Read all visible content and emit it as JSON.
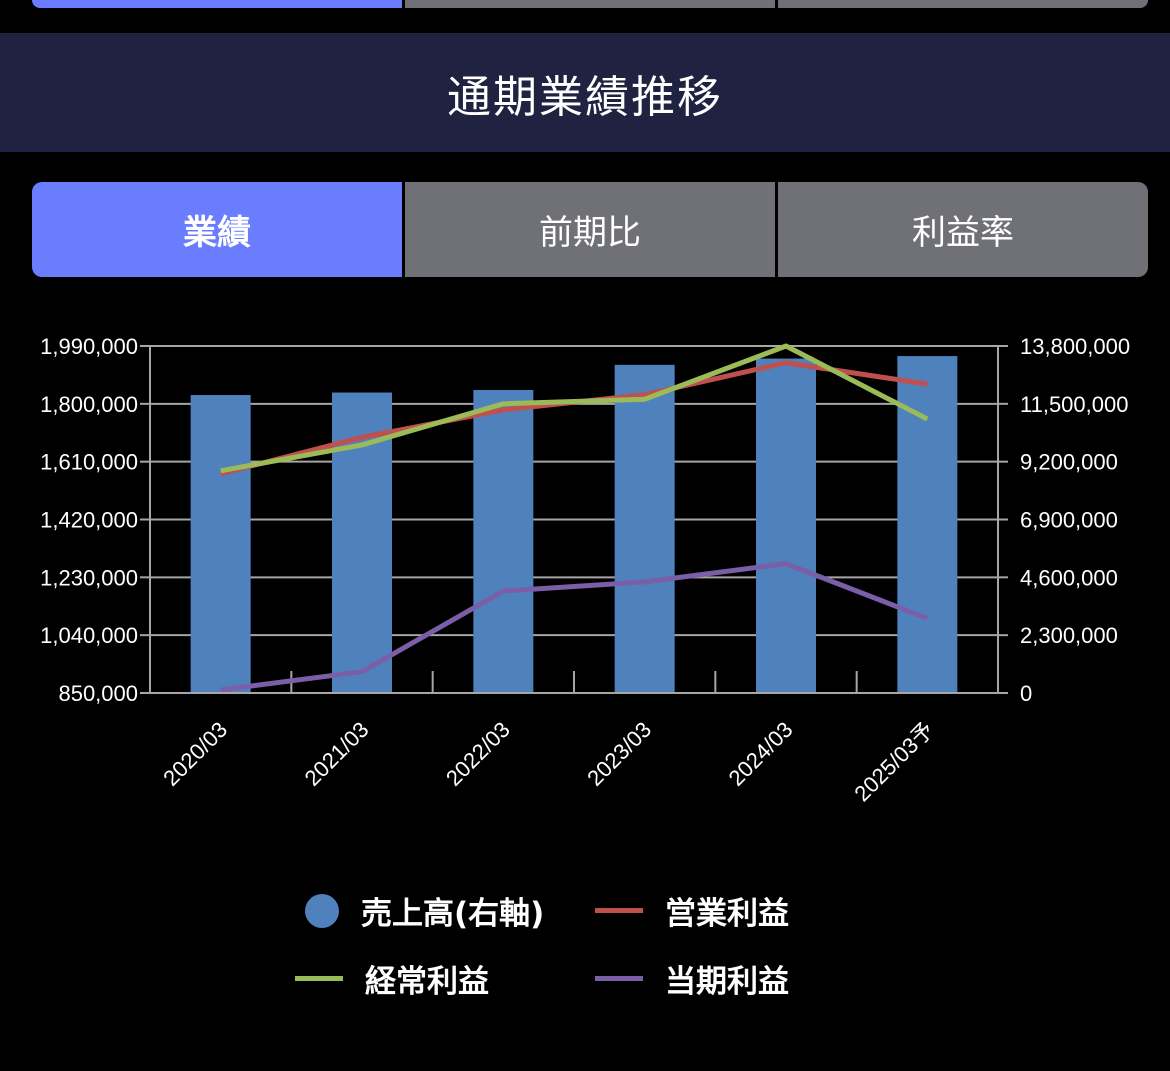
{
  "header": {
    "title": "通期業績推移"
  },
  "tabs": [
    {
      "label": "業績",
      "active": true
    },
    {
      "label": "前期比",
      "active": false
    },
    {
      "label": "利益率",
      "active": false
    }
  ],
  "colors": {
    "header_bg": "#1f2240",
    "tab_active": "#6a7dfe",
    "tab_inactive": "#707077",
    "sales": "#4f81bd",
    "operating": "#c0504d",
    "ordinary": "#9bbb59",
    "net": "#7a5fa8"
  },
  "legend": {
    "sales": "売上高(右軸)",
    "operating": "営業利益",
    "ordinary": "経常利益",
    "net": "当期利益"
  },
  "chart_data": {
    "type": "bar",
    "categories": [
      "2020/03",
      "2021/03",
      "2022/03",
      "2023/03",
      "2024/03",
      "2025/03予"
    ],
    "left_axis": {
      "ticks": [
        "1,990,000",
        "1,800,000",
        "1,610,000",
        "1,420,000",
        "1,230,000",
        "1,040,000",
        "850,000"
      ],
      "ylim": [
        850000,
        1990000
      ]
    },
    "right_axis": {
      "ticks": [
        "13,800,000",
        "11,500,000",
        "9,200,000",
        "6,900,000",
        "4,600,000",
        "2,300,000",
        "0"
      ],
      "ylim": [
        0,
        13800000
      ]
    },
    "grid": true,
    "legend_position": "bottom",
    "series": [
      {
        "name": "売上高(右軸)",
        "key": "sales",
        "type": "bar",
        "axis": "right",
        "values": [
          11850000,
          11950000,
          12050000,
          13050000,
          13300000,
          13400000
        ]
      },
      {
        "name": "営業利益",
        "key": "operating",
        "type": "line",
        "axis": "left",
        "values": [
          1570000,
          1690000,
          1780000,
          1830000,
          1935000,
          1865000
        ]
      },
      {
        "name": "経常利益",
        "key": "ordinary",
        "type": "line",
        "axis": "left",
        "values": [
          1580000,
          1665000,
          1800000,
          1815000,
          1990000,
          1750000
        ]
      },
      {
        "name": "当期利益",
        "key": "net",
        "type": "line",
        "axis": "left",
        "values": [
          860000,
          920000,
          1185000,
          1215000,
          1275000,
          1095000
        ]
      }
    ]
  }
}
